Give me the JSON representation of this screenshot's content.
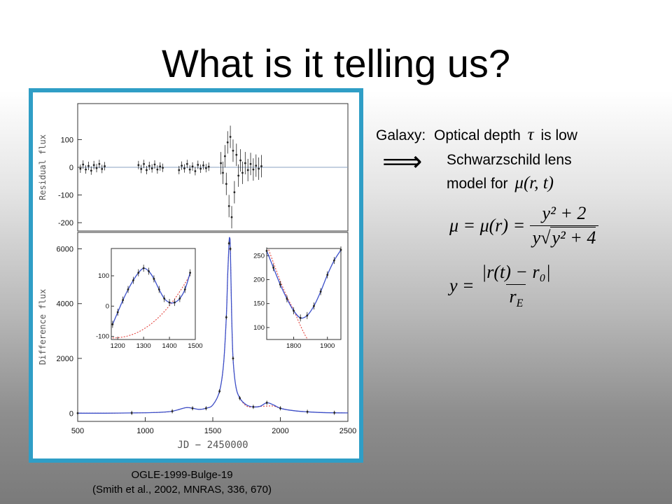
{
  "slide": {
    "title": "What is it telling us?",
    "caption_line1": "OGLE-1999-Bulge-19",
    "caption_line2": "(Smith et al., 2002, MNRAS, 336, 670)",
    "galaxy_label": "Galaxy:",
    "optical_depth_text": "Optical depth",
    "tau_symbol": "τ",
    "is_low_text": "is low",
    "implies_symbol": "⟹",
    "schwarzschild_line1": "Schwarzschild lens",
    "schwarzschild_line2": "model for"
  },
  "equations": {
    "mu_r_t": "μ(r, t)",
    "mu_lhs": "μ = μ(r) =",
    "mu_num": "y² + 2",
    "mu_den_y": "y",
    "mu_den_sqrt": "y² + 4",
    "y_lhs": "y =",
    "y_num": "|r(t) − r₀|",
    "y_den": "r",
    "y_den_sub": "E"
  },
  "colors": {
    "frame": "#2f9ec6",
    "model_line": "#3b4fc9",
    "dashed_model": "#e0302a",
    "data_points": "#222222"
  },
  "chart_data": [
    {
      "panel": "residual",
      "type": "scatter",
      "ylabel": "Residual flux",
      "xlim": [
        500,
        2500
      ],
      "ylim": [
        -230,
        230
      ],
      "yticks": [
        100,
        0,
        -100,
        -200
      ],
      "segments": [
        {
          "x": [
            520,
            540,
            560,
            580,
            600,
            620,
            640,
            660,
            680,
            700
          ],
          "y": [
            -5,
            10,
            -8,
            5,
            -12,
            8,
            -3,
            12,
            -6,
            4
          ]
        },
        {
          "x": [
            950,
            970,
            990,
            1010,
            1030,
            1050,
            1070,
            1090,
            1110,
            1130
          ],
          "y": [
            8,
            -6,
            12,
            -10,
            5,
            -4,
            10,
            -8,
            3,
            -2
          ]
        },
        {
          "x": [
            1250,
            1270,
            1290,
            1310,
            1330,
            1350,
            1370,
            1390,
            1410,
            1430,
            1450,
            1470
          ],
          "y": [
            -10,
            6,
            -4,
            12,
            -8,
            3,
            -14,
            9,
            -5,
            7,
            -3,
            2
          ]
        },
        {
          "x": [
            1560,
            1575,
            1590,
            1600,
            1610,
            1620,
            1630,
            1640,
            1650,
            1660,
            1675,
            1690,
            1705,
            1720,
            1740,
            1760,
            1780,
            1800,
            1820,
            1840,
            1860
          ],
          "y": [
            15,
            -20,
            40,
            -60,
            90,
            -140,
            110,
            -180,
            60,
            -90,
            45,
            -30,
            25,
            -20,
            15,
            -10,
            12,
            -8,
            6,
            -5,
            4
          ]
        }
      ]
    },
    {
      "panel": "difference",
      "type": "line",
      "ylabel": "Difference flux",
      "xlabel": "JD − 2450000",
      "xlim": [
        500,
        2500
      ],
      "ylim": [
        -300,
        6600
      ],
      "xticks": [
        500,
        1000,
        1500,
        2000,
        2500
      ],
      "yticks": [
        0,
        2000,
        4000,
        6000
      ],
      "series": [
        {
          "x": [
            500,
            700,
            900,
            1100,
            1200,
            1300,
            1350,
            1400,
            1450,
            1500,
            1550,
            1580,
            1600,
            1610,
            1620,
            1625,
            1630,
            1640,
            1650,
            1670,
            1700,
            1750,
            1800,
            1850,
            1900,
            1950,
            2000,
            2100,
            2200,
            2300,
            2400,
            2500
          ],
          "y": [
            0,
            0,
            10,
            30,
            70,
            200,
            180,
            140,
            180,
            300,
            800,
            1800,
            3500,
            5000,
            6200,
            6400,
            6000,
            3500,
            2000,
            1000,
            550,
            300,
            230,
            250,
            380,
            300,
            180,
            90,
            50,
            25,
            15,
            10
          ]
        }
      ]
    },
    {
      "panel": "inset-left",
      "type": "line",
      "xlim": [
        1175,
        1500
      ],
      "ylim": [
        -110,
        190
      ],
      "xticks": [
        1200,
        1300,
        1400,
        1500
      ],
      "yticks": [
        100,
        0,
        -100
      ],
      "series": [
        {
          "x": [
            1180,
            1200,
            1220,
            1240,
            1260,
            1280,
            1300,
            1320,
            1340,
            1360,
            1380,
            1400,
            1420,
            1440,
            1460,
            1480
          ],
          "y": [
            -60,
            -20,
            20,
            55,
            85,
            110,
            125,
            115,
            90,
            55,
            25,
            12,
            12,
            25,
            55,
            110
          ]
        }
      ]
    },
    {
      "panel": "inset-right",
      "type": "line",
      "xlim": [
        1720,
        1940
      ],
      "ylim": [
        75,
        265
      ],
      "xticks": [
        1800,
        1900
      ],
      "yticks": [
        250,
        200,
        150,
        100
      ],
      "series": [
        {
          "x": [
            1720,
            1740,
            1760,
            1780,
            1800,
            1820,
            1840,
            1860,
            1880,
            1900,
            1920,
            1940
          ],
          "y": [
            260,
            225,
            190,
            160,
            135,
            120,
            125,
            145,
            175,
            210,
            240,
            262
          ]
        }
      ]
    }
  ]
}
